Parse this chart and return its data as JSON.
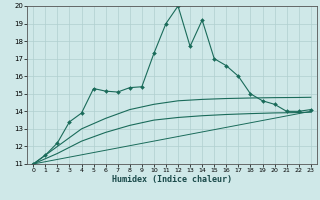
{
  "xlabel": "Humidex (Indice chaleur)",
  "ylabel": "",
  "bg_color": "#cfe8e8",
  "grid_color": "#b0cfcf",
  "line_color": "#1a6b5a",
  "xlim": [
    -0.5,
    23.5
  ],
  "ylim": [
    11,
    20
  ],
  "xticks": [
    0,
    1,
    2,
    3,
    4,
    5,
    6,
    7,
    8,
    9,
    10,
    11,
    12,
    13,
    14,
    15,
    16,
    17,
    18,
    19,
    20,
    21,
    22,
    23
  ],
  "yticks": [
    11,
    12,
    13,
    14,
    15,
    16,
    17,
    18,
    19,
    20
  ],
  "series1_x": [
    0,
    1,
    2,
    3,
    4,
    5,
    6,
    7,
    8,
    9,
    10,
    11,
    12,
    13,
    14,
    15,
    16,
    17,
    18,
    19,
    20,
    21,
    22,
    23
  ],
  "series1_y": [
    11.0,
    11.5,
    12.2,
    13.4,
    13.9,
    15.3,
    15.15,
    15.1,
    15.35,
    15.4,
    17.3,
    19.0,
    20.0,
    17.7,
    19.2,
    17.0,
    16.6,
    16.0,
    15.0,
    14.6,
    14.4,
    14.0,
    14.0,
    14.1
  ],
  "series2_x": [
    0,
    2,
    4,
    6,
    8,
    10,
    12,
    14,
    16,
    18,
    20,
    22,
    23
  ],
  "series2_y": [
    11.0,
    12.0,
    13.0,
    13.6,
    14.1,
    14.4,
    14.6,
    14.68,
    14.73,
    14.76,
    14.78,
    14.79,
    14.8
  ],
  "series3_x": [
    0,
    2,
    4,
    6,
    8,
    10,
    12,
    14,
    16,
    18,
    20,
    22,
    23
  ],
  "series3_y": [
    11.0,
    11.6,
    12.3,
    12.8,
    13.2,
    13.5,
    13.65,
    13.75,
    13.82,
    13.87,
    13.91,
    13.93,
    13.95
  ],
  "series4_x": [
    0,
    23
  ],
  "series4_y": [
    11.0,
    14.0
  ]
}
